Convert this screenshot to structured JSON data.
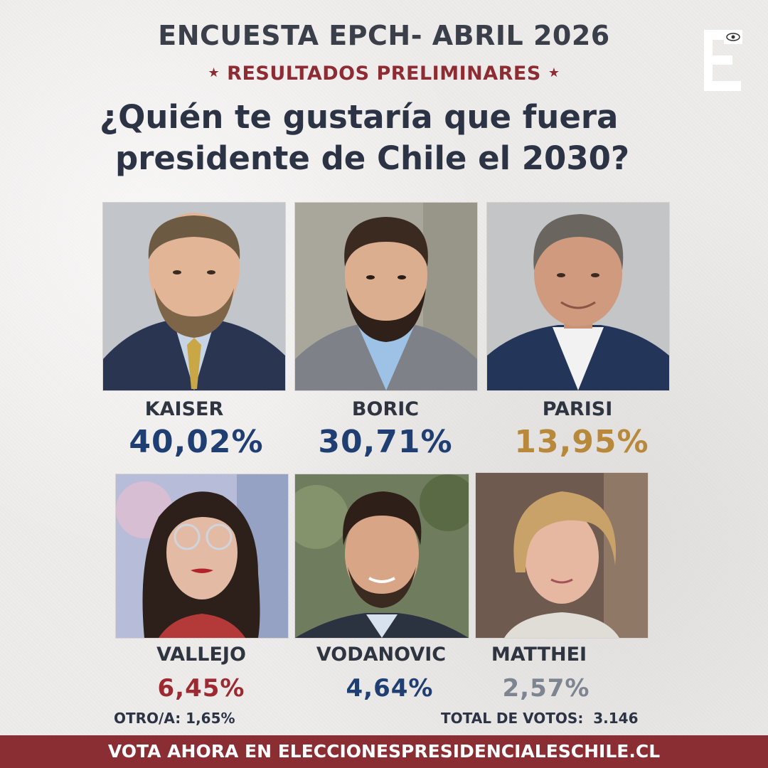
{
  "header": {
    "title": "ENCUESTA EPCH- ABRIL 2026",
    "subtitle": "RESULTADOS PRELIMINARES",
    "question_line1": "¿Quién te gustaría que fuera",
    "question_line2": "presidente de Chile el 2030?"
  },
  "logo": {
    "letter": "E"
  },
  "colors": {
    "navy": "#1f3f73",
    "gold": "#b8893a",
    "red": "#9d2a31",
    "blue": "#2c5a8c",
    "gray": "#7d8590",
    "banner": "#8b2e33"
  },
  "candidates": [
    {
      "name": "KAISER",
      "percent": "40,02%"
    },
    {
      "name": "BORIC",
      "percent": "30,71%"
    },
    {
      "name": "PARISI",
      "percent": "13,95%"
    },
    {
      "name": "VALLEJO",
      "percent": "6,45%"
    },
    {
      "name": "VODANOVIC",
      "percent": "4,64%"
    },
    {
      "name": "MATTHEI",
      "percent": "2,57%"
    }
  ],
  "footer": {
    "other": "OTRO/A: 1,65%",
    "total": "TOTAL DE VOTOS:  3.146",
    "banner": "VOTA AHORA EN ELECCIONESPRESIDENCIALESCHILE.CL"
  }
}
